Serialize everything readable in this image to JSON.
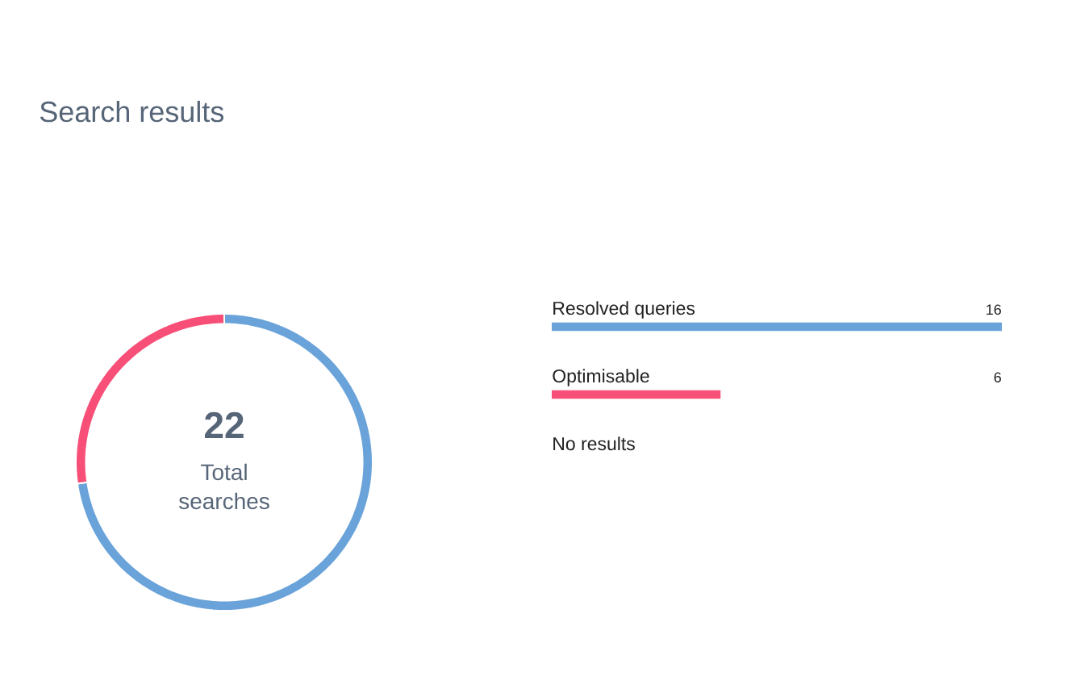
{
  "chart_data": [
    {
      "type": "donut",
      "title": "Search results",
      "categories": [
        null,
        null
      ],
      "values": [
        72.7,
        27.3
      ],
      "colors": [
        "#6aa3d9",
        "#f74f77"
      ],
      "annotations": [
        "22",
        "Total searches"
      ]
    },
    {
      "type": "bar",
      "orientation": "horizontal",
      "categories": [
        "Resolved queries",
        "Optimisable",
        "No results"
      ],
      "values": [
        16,
        6,
        0
      ],
      "colors": [
        "#6aa3d9",
        "#f74f77",
        null
      ],
      "value_labels": [
        "16",
        "6",
        null
      ]
    }
  ]
}
